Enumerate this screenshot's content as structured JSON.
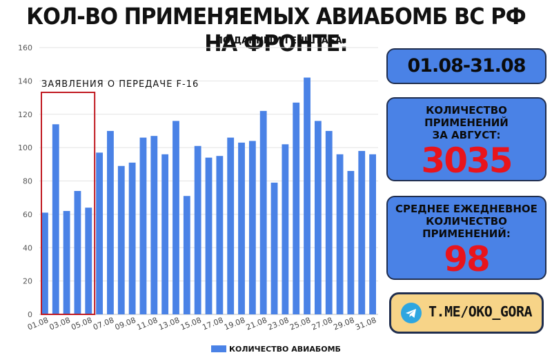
{
  "header": {
    "title": "КОЛ-ВО ПРИМЕНЯЕМЫХ АВИАБОМБ ВС РФ НА ФРОНТЕ:",
    "subtitle": "ПО ДАННЫМ ГЕНШТАБА."
  },
  "panels": {
    "date_range": "01.08-31.08",
    "total_label_line1": "КОЛИЧЕСТВО ПРИМЕНЕНИЙ",
    "total_label_line2": "ЗА АВГУСТ:",
    "total_value": "3035",
    "avg_label_line1": "СРЕДНЕЕ ЕЖЕДНЕВНОЕ",
    "avg_label_line2": "КОЛИЧЕСТВО ПРИМЕНЕНИЙ:",
    "avg_value": "98",
    "channel": "T.ME/OKO_GORA"
  },
  "colors": {
    "bar": "#4a82e6",
    "highlight_box": "#c0181f",
    "value_red": "#e8141c",
    "panel_blue": "#4a82e6",
    "channel_box": "#f7d488"
  },
  "chart_data": {
    "type": "bar",
    "categories": [
      "01.08",
      "02.08",
      "03.08",
      "04.08",
      "05.08",
      "06.08",
      "07.08",
      "08.08",
      "09.08",
      "10.08",
      "11.08",
      "12.08",
      "13.08",
      "14.08",
      "15.08",
      "16.08",
      "17.08",
      "18.08",
      "19.08",
      "20.08",
      "21.08",
      "22.08",
      "23.08",
      "24.08",
      "25.08",
      "26.08",
      "27.08",
      "28.08",
      "29.08",
      "30.08",
      "31.08"
    ],
    "tick_labels": [
      "01.08",
      "03.08",
      "05.08",
      "07.08",
      "09.08",
      "11.08",
      "13.08",
      "15.08",
      "17.08",
      "19.08",
      "21.08",
      "23.08",
      "25.08",
      "27.08",
      "29.08",
      "31.08"
    ],
    "series": [
      {
        "name": "КОЛИЧЕСТВО АВИАБОМБ",
        "values": [
          61,
          114,
          62,
          74,
          64,
          97,
          110,
          89,
          91,
          106,
          107,
          96,
          116,
          71,
          101,
          94,
          95,
          106,
          103,
          104,
          122,
          79,
          102,
          127,
          142,
          116,
          110,
          96,
          86,
          98,
          96
        ]
      }
    ],
    "yticks": [
      0,
      20,
      40,
      60,
      80,
      100,
      120,
      140,
      160
    ],
    "ylim": [
      0,
      160
    ],
    "grid": true,
    "legend": "bottom",
    "annotation": {
      "text": "ЗАЯВЛЕНИЯ  О ПЕРЕДАЧЕ F-16",
      "from_category": "01.08",
      "to_category": "05.08"
    }
  }
}
